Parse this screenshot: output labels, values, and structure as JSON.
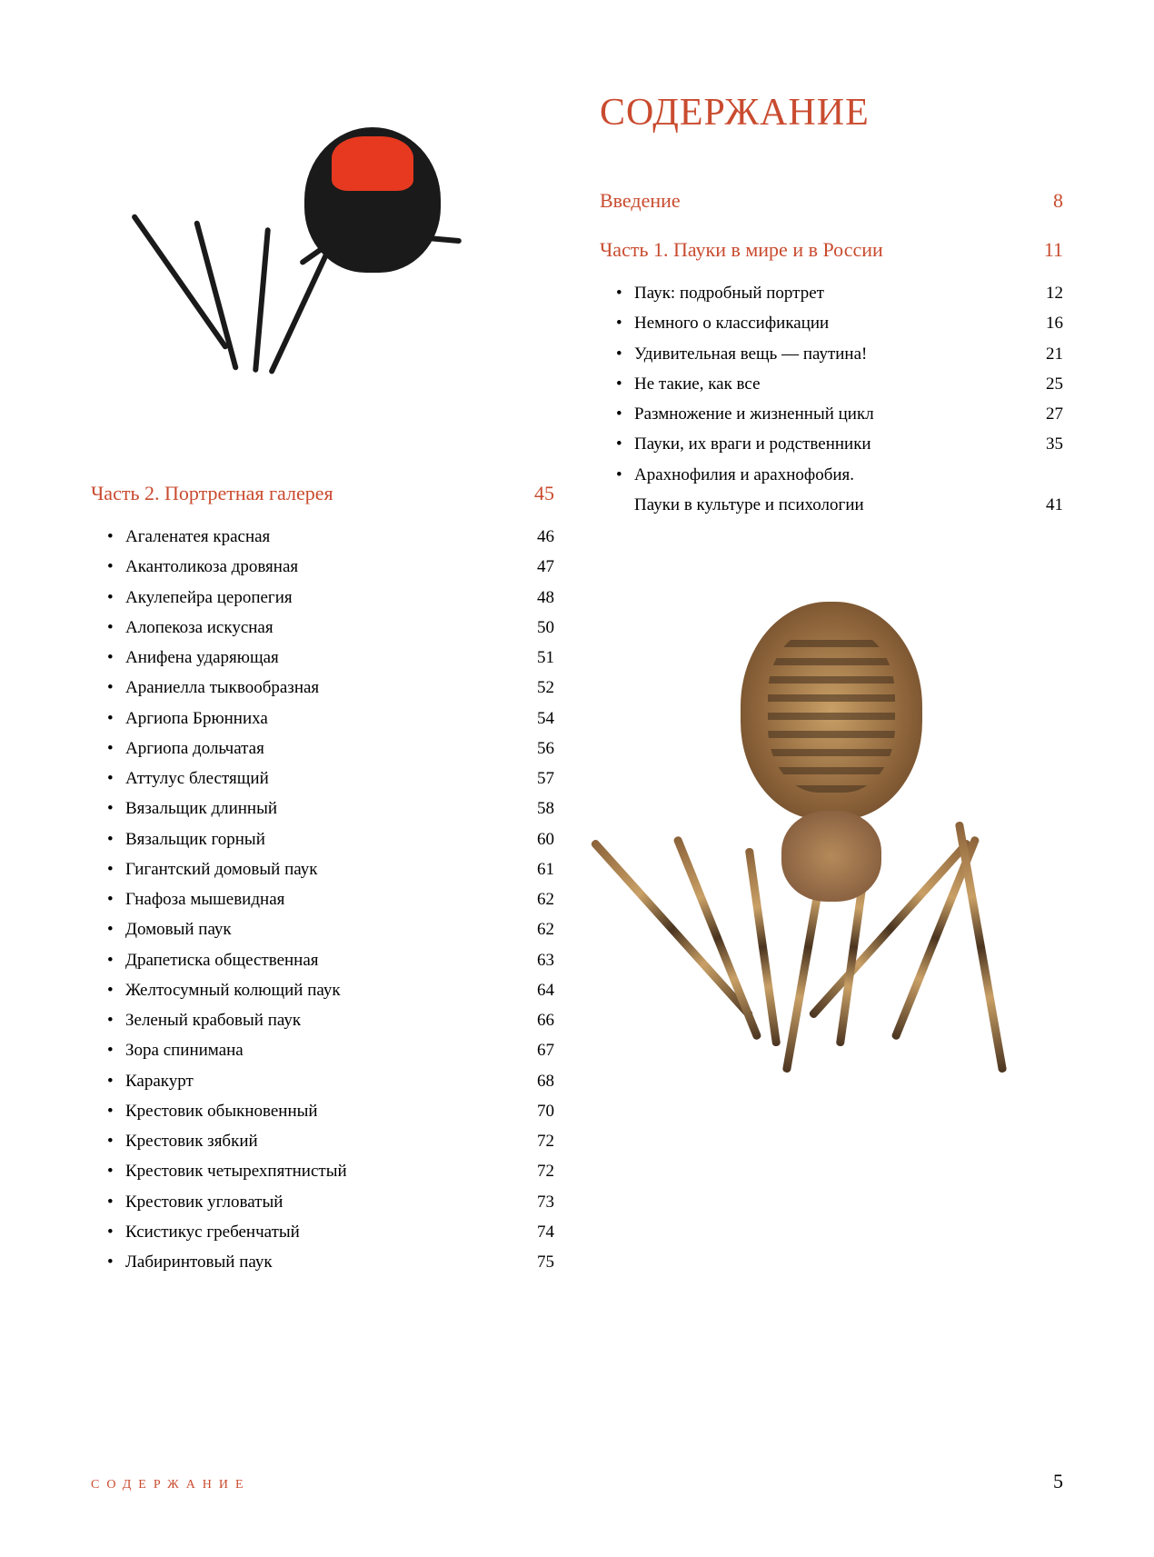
{
  "colors": {
    "accent": "#c94b2f",
    "text": "#000000",
    "background": "#ffffff"
  },
  "title": "СОДЕРЖАНИЕ",
  "intro": {
    "label": "Введение",
    "page": "8"
  },
  "part1": {
    "title": "Часть 1. Пауки в мире и в России",
    "page": "11",
    "items": [
      {
        "label": "Паук: подробный портрет",
        "page": "12"
      },
      {
        "label": "Немного о классификации",
        "page": "16"
      },
      {
        "label": "Удивительная вещь — паутина!",
        "page": "21"
      },
      {
        "label": "Не такие, как все",
        "page": "25"
      },
      {
        "label": "Размножение и жизненный цикл",
        "page": "27"
      },
      {
        "label": "Пауки, их враги и родственники",
        "page": "35"
      },
      {
        "label_line1": "Арахнофилия и арахнофобия.",
        "label_line2": "Пауки в культуре и психологии",
        "page": "41",
        "multiline": true
      }
    ]
  },
  "part2": {
    "title": "Часть 2. Портретная галерея",
    "page": "45",
    "items": [
      {
        "label": "Агаленатея красная",
        "page": "46"
      },
      {
        "label": "Акантоликоза дровяная",
        "page": "47"
      },
      {
        "label": "Акулепейра церопегия",
        "page": "48"
      },
      {
        "label": "Алопекоза искусная",
        "page": "50"
      },
      {
        "label": "Анифена ударяющая",
        "page": "51"
      },
      {
        "label": "Араниелла тыквообразная",
        "page": "52"
      },
      {
        "label": "Аргиопа Брюнниха",
        "page": "54"
      },
      {
        "label": "Аргиопа дольчатая",
        "page": "56"
      },
      {
        "label": "Аттулус блестящий",
        "page": "57"
      },
      {
        "label": "Вязальщик длинный",
        "page": "58"
      },
      {
        "label": "Вязальщик горный",
        "page": "60"
      },
      {
        "label": "Гигантский домовый паук",
        "page": "61"
      },
      {
        "label": "Гнафоза мышевидная",
        "page": "62"
      },
      {
        "label": "Домовый паук",
        "page": "62"
      },
      {
        "label": "Драпетиска общественная",
        "page": "63"
      },
      {
        "label": "Желтосумный колющий паук",
        "page": "64"
      },
      {
        "label": "Зеленый крабовый паук",
        "page": "66"
      },
      {
        "label": "Зора спинимана",
        "page": "67"
      },
      {
        "label": "Каракурт",
        "page": "68"
      },
      {
        "label": "Крестовик обыкновенный",
        "page": "70"
      },
      {
        "label": "Крестовик зябкий",
        "page": "72"
      },
      {
        "label": "Крестовик четырехпятнистый",
        "page": "72"
      },
      {
        "label": "Крестовик угловатый",
        "page": "73"
      },
      {
        "label": "Ксистикус гребенчатый",
        "page": "74"
      },
      {
        "label": "Лабиринтовый паук",
        "page": "75"
      }
    ]
  },
  "footer": {
    "label": "СОДЕРЖАНИЕ",
    "page": "5"
  }
}
